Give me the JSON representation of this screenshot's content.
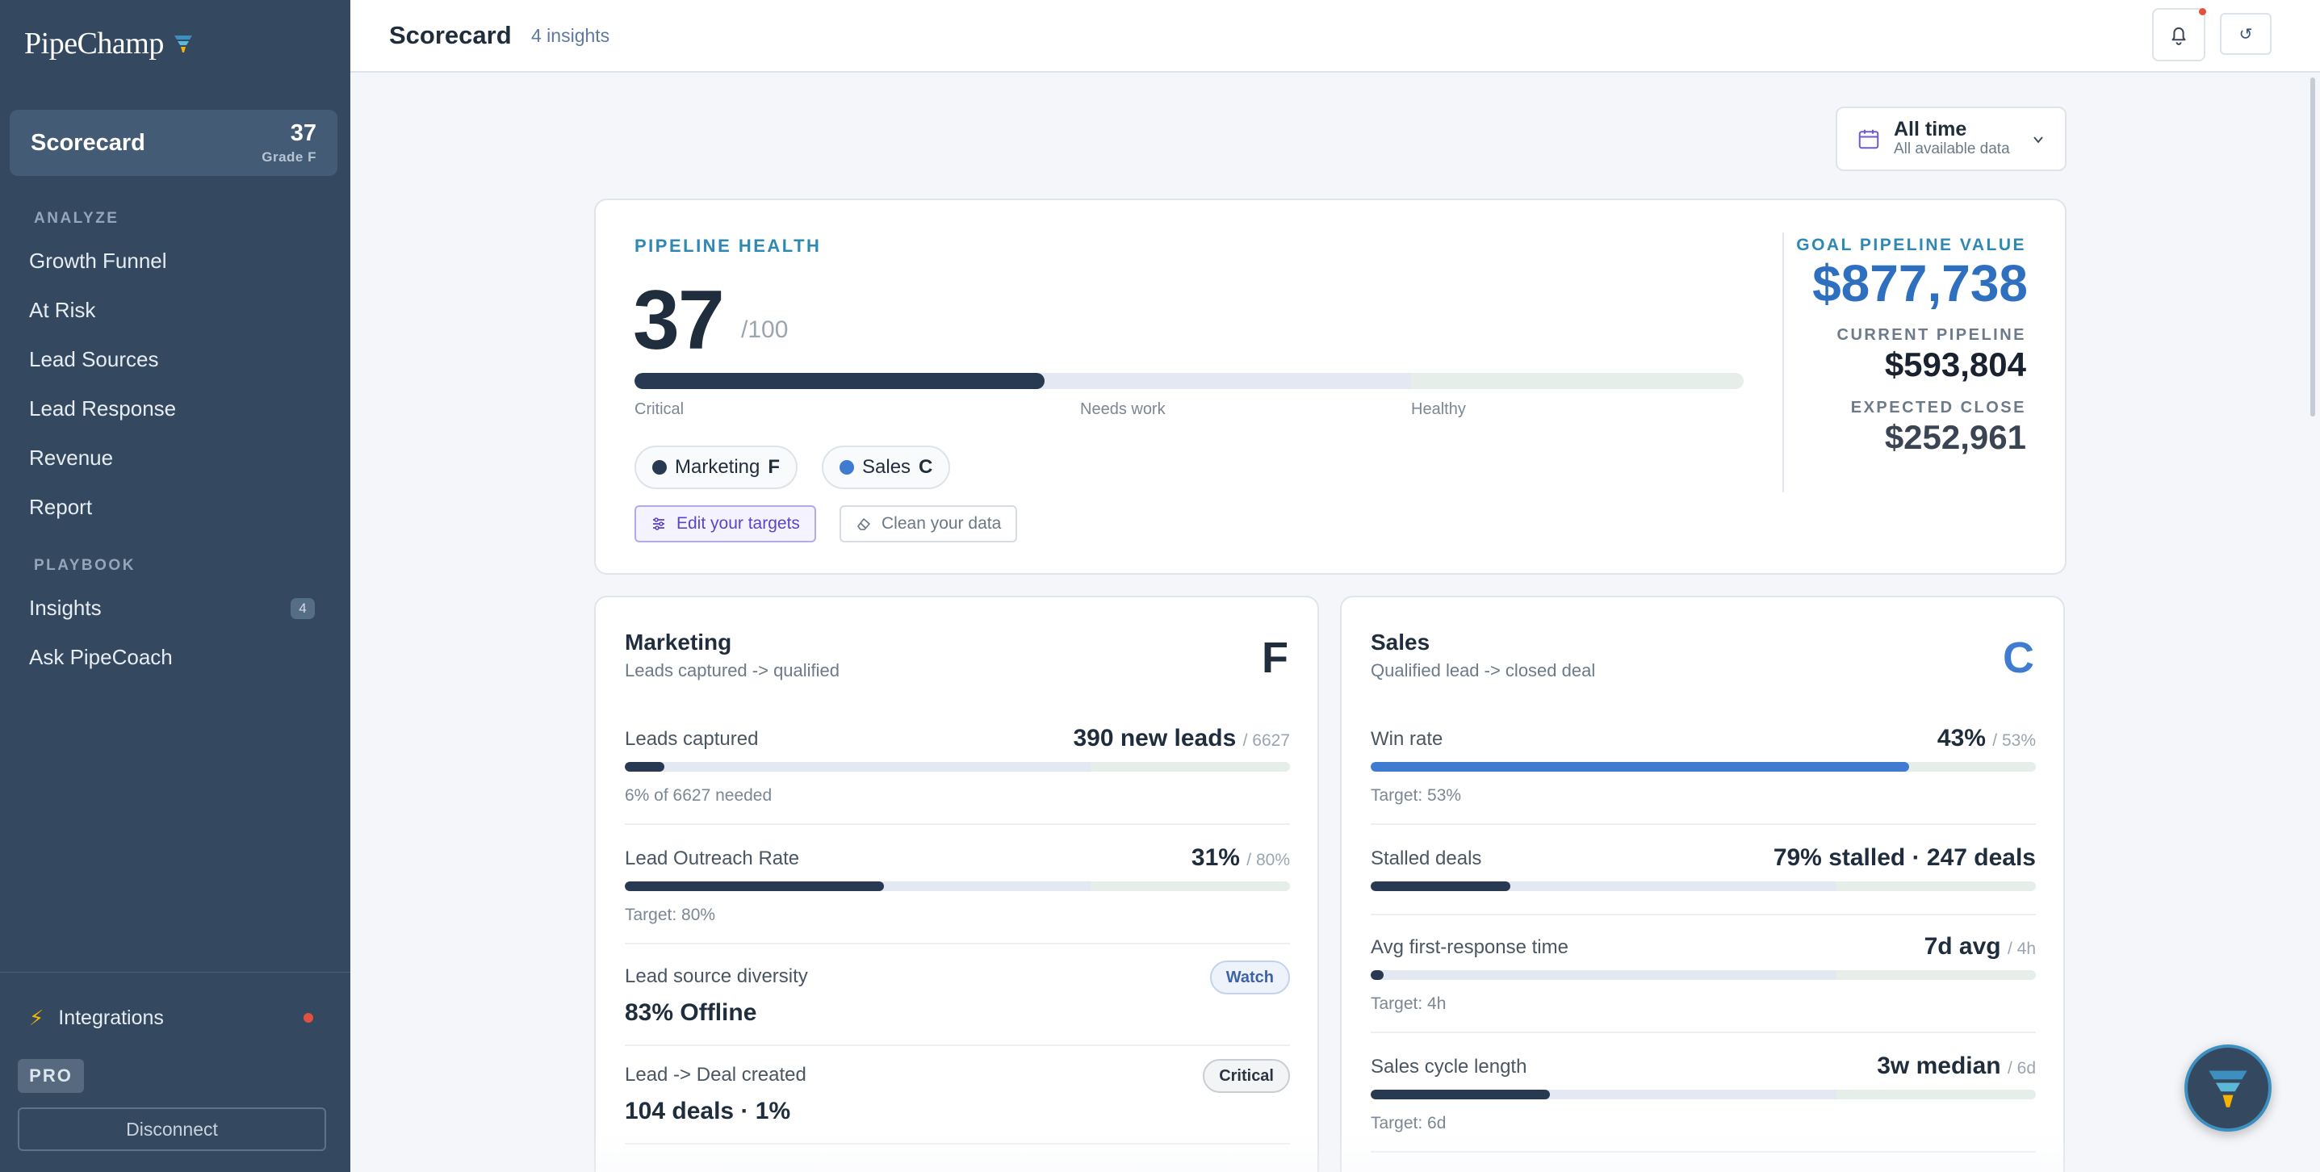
{
  "brand": {
    "name": "PipeChamp",
    "logo_icon": "funnel-logo-icon"
  },
  "sidebar": {
    "scorecard": {
      "label": "Scorecard",
      "score": "37",
      "grade": "Grade F"
    },
    "sections": [
      {
        "label": "ANALYZE",
        "items": [
          {
            "label": "Growth Funnel"
          },
          {
            "label": "At Risk"
          },
          {
            "label": "Lead Sources"
          },
          {
            "label": "Lead Response"
          },
          {
            "label": "Revenue"
          },
          {
            "label": "Report"
          }
        ]
      },
      {
        "label": "PLAYBOOK",
        "items": [
          {
            "label": "Insights",
            "badge": "4"
          },
          {
            "label": "Ask PipeCoach"
          }
        ]
      }
    ],
    "integrations": {
      "label": "Integrations",
      "status_color": "#e0523f"
    },
    "plan": "PRO",
    "disconnect_label": "Disconnect"
  },
  "header": {
    "title": "Scorecard",
    "subtitle": "4 insights",
    "refresh_glyph": "↺"
  },
  "date_filter": {
    "label": "All time",
    "sublabel": "All available data"
  },
  "health": {
    "label": "PIPELINE HEALTH",
    "score": "37",
    "out_of": "/100",
    "score_fraction": 0.37,
    "ticks": [
      "Critical",
      "Needs work",
      "Healthy"
    ],
    "teams": [
      {
        "name": "Marketing",
        "grade": "F",
        "color": "#283a52"
      },
      {
        "name": "Sales",
        "grade": "C",
        "color": "#3f7bd0"
      }
    ],
    "actions": {
      "targets": "Edit your targets",
      "clean": "Clean your data"
    },
    "goal": {
      "label": "GOAL PIPELINE VALUE",
      "value": "$877,738"
    },
    "current": {
      "label": "CURRENT PIPELINE",
      "value": "$593,804"
    },
    "expected": {
      "label": "EXPECTED CLOSE",
      "value": "$252,961"
    }
  },
  "marketing": {
    "title": "Marketing",
    "subtitle": "Leads captured -> qualified",
    "grade": "F",
    "grade_color": "#1f2d3d",
    "metrics": [
      {
        "name": "Leads captured",
        "value": "390 new leads",
        "target": "/ 6627",
        "fraction": 0.06,
        "note": "6% of 6627 needed"
      },
      {
        "name": "Lead Outreach Rate",
        "value": "31%",
        "target": "/ 80%",
        "fraction": 0.39,
        "note": "Target: 80%"
      },
      {
        "name": "Lead source diversity",
        "big": "83% Offline",
        "pill": "Watch"
      },
      {
        "name": "Lead -> Deal created",
        "big": "104 deals · 1%",
        "pill": "Critical"
      }
    ]
  },
  "sales": {
    "title": "Sales",
    "subtitle": "Qualified lead -> closed deal",
    "grade": "C",
    "grade_color": "#3f7bd0",
    "metrics": [
      {
        "name": "Win rate",
        "value": "43%",
        "target": "/ 53%",
        "fraction": 0.81,
        "note": "Target: 53%"
      },
      {
        "name": "Stalled deals",
        "value": "79% stalled · 247 deals",
        "fraction": 0.21
      },
      {
        "name": "Avg first-response time",
        "value": "7d avg",
        "target": "/ 4h",
        "fraction": 0.02,
        "note": "Target: 4h"
      },
      {
        "name": "Sales cycle length",
        "value": "3w median",
        "target": "/ 6d",
        "fraction": 0.27,
        "note": "Target: 6d"
      }
    ]
  },
  "colors": {
    "sidebar": "#34485f",
    "accent_blue": "#2f6fbf",
    "accent_teal": "#2e88b4",
    "dark_bar": "#283a52",
    "blue_bar": "#3f7bd0"
  }
}
